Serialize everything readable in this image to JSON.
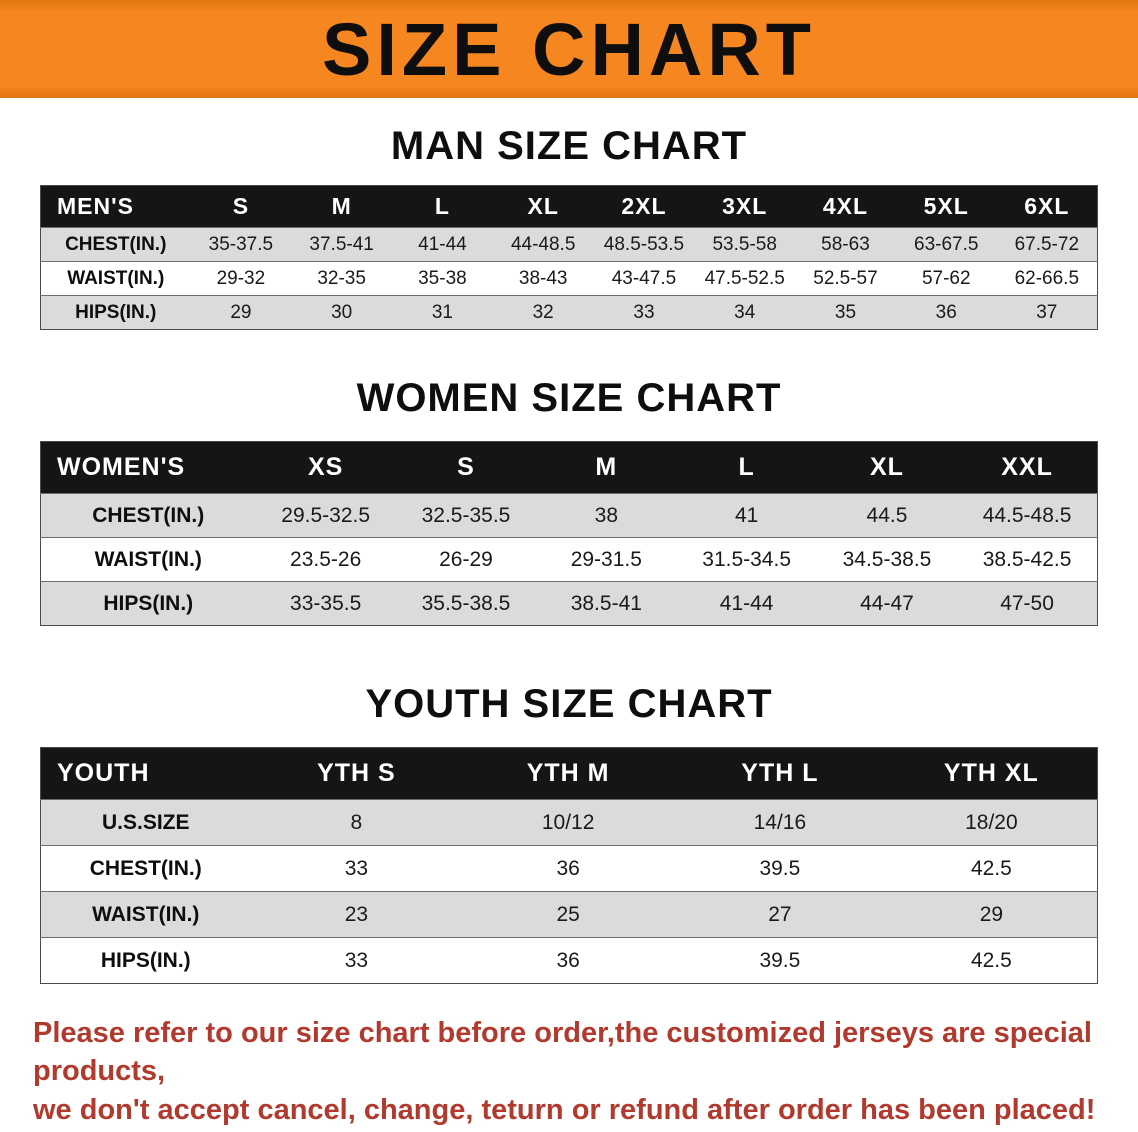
{
  "banner": {
    "title": "SIZE CHART"
  },
  "sections": [
    {
      "id": "men",
      "heading": "MAN SIZE CHART",
      "table": {
        "header": [
          "MEN'S",
          "S",
          "M",
          "L",
          "XL",
          "2XL",
          "3XL",
          "4XL",
          "5XL",
          "6XL"
        ],
        "rows": [
          [
            "CHEST(IN.)",
            "35-37.5",
            "37.5-41",
            "41-44",
            "44-48.5",
            "48.5-53.5",
            "53.5-58",
            "58-63",
            "63-67.5",
            "67.5-72"
          ],
          [
            "WAIST(IN.)",
            "29-32",
            "32-35",
            "35-38",
            "38-43",
            "43-47.5",
            "47.5-52.5",
            "52.5-57",
            "57-62",
            "62-66.5"
          ],
          [
            "HIPS(IN.)",
            "29",
            "30",
            "31",
            "32",
            "33",
            "34",
            "35",
            "36",
            "37"
          ]
        ]
      }
    },
    {
      "id": "women",
      "heading": "WOMEN SIZE CHART",
      "table": {
        "header": [
          "WOMEN'S",
          "XS",
          "S",
          "M",
          "L",
          "XL",
          "XXL"
        ],
        "rows": [
          [
            "CHEST(IN.)",
            "29.5-32.5",
            "32.5-35.5",
            "38",
            "41",
            "44.5",
            "44.5-48.5"
          ],
          [
            "WAIST(IN.)",
            "23.5-26",
            "26-29",
            "29-31.5",
            "31.5-34.5",
            "34.5-38.5",
            "38.5-42.5"
          ],
          [
            "HIPS(IN.)",
            "33-35.5",
            "35.5-38.5",
            "38.5-41",
            "41-44",
            "44-47",
            "47-50"
          ]
        ]
      }
    },
    {
      "id": "youth",
      "heading": "YOUTH SIZE CHART",
      "table": {
        "header": [
          "YOUTH",
          "YTH S",
          "YTH M",
          "YTH L",
          "YTH XL"
        ],
        "rows": [
          [
            "U.S.SIZE",
            "8",
            "10/12",
            "14/16",
            "18/20"
          ],
          [
            "CHEST(IN.)",
            "33",
            "36",
            "39.5",
            "42.5"
          ],
          [
            "WAIST(IN.)",
            "23",
            "25",
            "27",
            "29"
          ],
          [
            "HIPS(IN.)",
            "33",
            "36",
            "39.5",
            "42.5"
          ]
        ]
      }
    }
  ],
  "notice": {
    "line1": "Please refer to our size chart before order,the customized jerseys are special products,",
    "line2": "we don't accept cancel, change, teturn or refund after order has been placed!"
  },
  "colors": {
    "banner_bg": "#f6861f",
    "table_header_bg": "#151515",
    "row_stripe_bg": "#dbdbdb",
    "notice_text": "#b13a2e"
  }
}
